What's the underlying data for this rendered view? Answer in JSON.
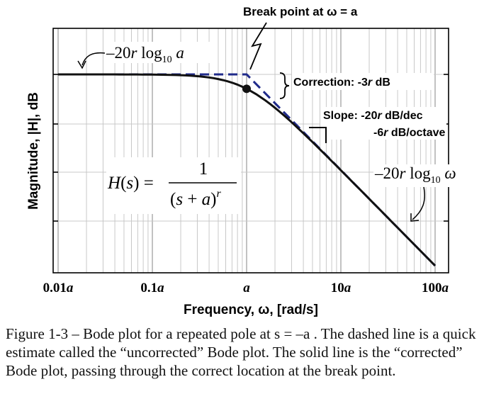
{
  "chart_data": {
    "type": "line",
    "x_scale": "log",
    "ylabel": "Magnitude, |H|, dB",
    "xlabel": "Frequency, ω, [rad/s]",
    "x_ticks": [
      {
        "value": 0.01,
        "label": "0.01a"
      },
      {
        "value": 0.1,
        "label": "0.1a"
      },
      {
        "value": 1,
        "label": "a"
      },
      {
        "value": 10,
        "label": "10a"
      },
      {
        "value": 100,
        "label": "100a"
      }
    ],
    "xlim": [
      0.01,
      100
    ],
    "ylim_relative_r_db": [
      -42,
      0.6
    ],
    "grid": true,
    "series": [
      {
        "style": "dashed",
        "x": [
          0.01,
          1,
          100
        ],
        "y_per_r_db": [
          0,
          0,
          -40
        ]
      },
      {
        "style": "solid",
        "x": [
          0.01,
          0.03,
          0.1,
          0.2,
          0.3,
          0.5,
          0.7,
          1,
          1.5,
          2,
          3,
          5,
          7,
          10,
          20,
          50,
          100
        ],
        "y_per_r_db": [
          0,
          -0.004,
          -0.04,
          -0.17,
          -0.37,
          -0.97,
          -1.73,
          -3.01,
          -5.12,
          -6.99,
          -10.0,
          -14.15,
          -17.0,
          -20.04,
          -26.03,
          -33.98,
          -40.0
        ]
      }
    ],
    "annotations": {
      "breakpoint_title": "Break point at ω = a",
      "low_asymptote": "–20r log10 a",
      "correction": "Correction: -3r dB",
      "slope_line1": "Slope: -20r dB/dec",
      "slope_line2": "-6r dB/octave",
      "high_asymptote": "–20r log10 ω",
      "transfer_function": "H(s) = 1 / (s+a)^r"
    },
    "colors": {
      "dashed": "#1f2a8a",
      "solid": "#111111"
    }
  },
  "caption": "Figure 1-3 – Bode plot for a repeated pole at s = –a . The dashed line is a quick estimate called the “uncorrected” Bode plot. The solid line is the “corrected” Bode plot, passing through the correct location at the break point."
}
